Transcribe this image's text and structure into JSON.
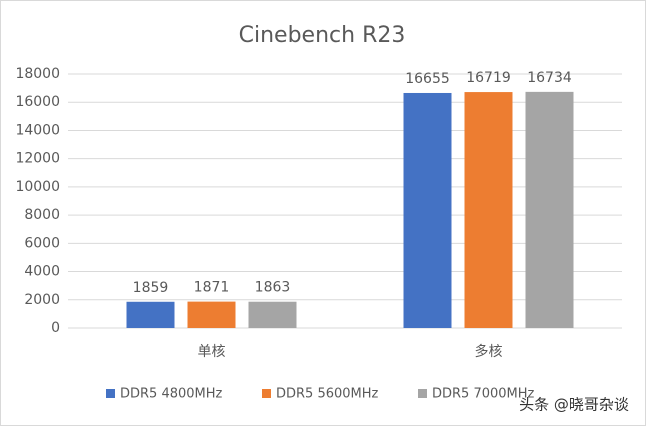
{
  "chart_data": {
    "type": "bar",
    "title": "Cinebench R23",
    "categories": [
      "单核",
      "多核"
    ],
    "series": [
      {
        "name": "DDR5 4800MHz",
        "color": "#4472c4",
        "values": [
          1859,
          16655
        ]
      },
      {
        "name": "DDR5 5600MHz",
        "color": "#ed7d31",
        "values": [
          1871,
          16719
        ]
      },
      {
        "name": "DDR5 7000MHz",
        "color": "#a5a5a5",
        "values": [
          1863,
          16734
        ]
      }
    ],
    "ylim": [
      0,
      18000
    ],
    "yticks": [
      0,
      2000,
      4000,
      6000,
      8000,
      10000,
      12000,
      14000,
      16000,
      18000
    ],
    "grid": true,
    "legend": "bottom",
    "annotations": [
      "头条 @晓哥杂谈"
    ]
  }
}
